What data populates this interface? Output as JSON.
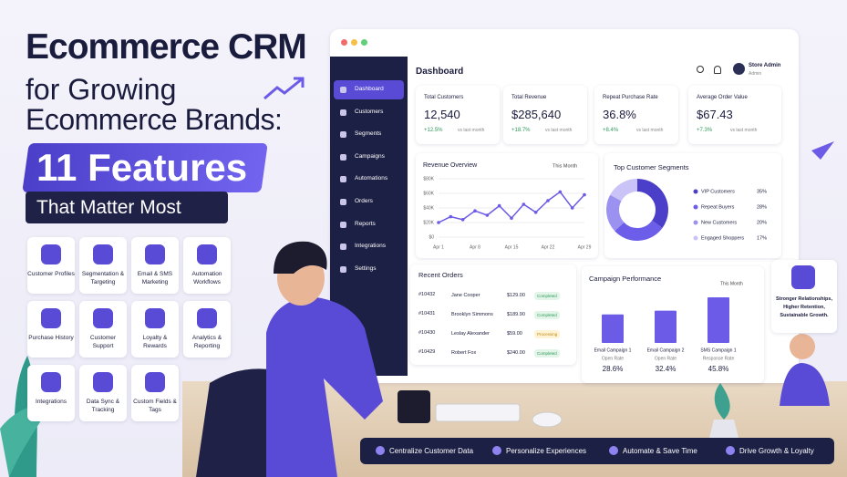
{
  "hero": {
    "line1": "Ecommerce CRM",
    "line2": "for Growing",
    "line3": "Ecommerce Brands:",
    "highlight": "11 Features",
    "subtitle": "That Matter Most"
  },
  "features": [
    "Customer Profiles",
    "Segmentation & Targeting",
    "Email & SMS Marketing",
    "Automation Workflows",
    "Purchase History",
    "Customer Support",
    "Loyalty & Rewards",
    "Analytics & Reporting",
    "Integrations",
    "Data Sync & Tracking",
    "Custom Fields & Tags"
  ],
  "dashboard": {
    "title": "Dashboard",
    "nav": [
      "Dashboard",
      "Customers",
      "Segments",
      "Campaigns",
      "Automations",
      "Orders",
      "Reports",
      "Integrations",
      "Settings"
    ],
    "user": {
      "name": "Store Admin",
      "role": "Admin"
    },
    "kpis": [
      {
        "label": "Total Customers",
        "value": "12,540",
        "change": "+12.5%",
        "period": "vs last month"
      },
      {
        "label": "Total Revenue",
        "value": "$285,640",
        "change": "+18.7%",
        "period": "vs last month"
      },
      {
        "label": "Repeat Purchase Rate",
        "value": "36.8%",
        "change": "+8.4%",
        "period": "vs last month"
      },
      {
        "label": "Average Order Value",
        "value": "$67.43",
        "change": "+7.3%",
        "period": "vs last month"
      }
    ],
    "revenue": {
      "title": "Revenue Overview",
      "range": "This Month",
      "ylim": [
        0,
        80000
      ],
      "yticks": [
        {
          "value": 0,
          "label": "$0"
        },
        {
          "value": 20000,
          "label": "$20K"
        },
        {
          "value": 40000,
          "label": "$40K"
        },
        {
          "value": 60000,
          "label": "$60K"
        },
        {
          "value": 80000,
          "label": "$80K"
        }
      ],
      "xlabels": [
        "Apr 1",
        "Apr 8",
        "Apr 15",
        "Apr 22",
        "Apr 29"
      ],
      "values": [
        20000,
        28000,
        24000,
        36000,
        30000,
        43000,
        26000,
        45000,
        34000,
        50000,
        62000,
        40000,
        58000
      ],
      "color": "#6b5be6"
    },
    "segments": {
      "title": "Top Customer Segments",
      "items": [
        {
          "name": "VIP Customers",
          "value": 35,
          "label": "35%",
          "color": "#4b3fc9"
        },
        {
          "name": "Repeat Buyers",
          "value": 28,
          "label": "28%",
          "color": "#6c5ee8"
        },
        {
          "name": "New Customers",
          "value": 20,
          "label": "20%",
          "color": "#9b91f0"
        },
        {
          "name": "Engaged Shoppers",
          "value": 17,
          "label": "17%",
          "color": "#c9c3f7"
        }
      ]
    },
    "orders": {
      "title": "Recent Orders",
      "rows": [
        {
          "id": "#10432",
          "name": "Jane Cooper",
          "amount": "$129.00",
          "status": "Completed"
        },
        {
          "id": "#10431",
          "name": "Brooklyn Simmons",
          "amount": "$189.90",
          "status": "Completed"
        },
        {
          "id": "#10430",
          "name": "Leslay Alexander",
          "amount": "$59.00",
          "status": "Processing"
        },
        {
          "id": "#10429",
          "name": "Robert Fox",
          "amount": "$240.00",
          "status": "Completed"
        }
      ]
    },
    "campaigns": {
      "title": "Campaign Performance",
      "range": "This Month",
      "items": [
        {
          "name": "Email Campaign 1",
          "metric": "Open Rate",
          "value": 28.6,
          "label": "28.6%"
        },
        {
          "name": "Email Campaign 2",
          "metric": "Open Rate",
          "value": 32.4,
          "label": "32.4%"
        },
        {
          "name": "SMS Campaign 1",
          "metric": "Response Rate",
          "value": 45.8,
          "label": "45.8%"
        }
      ]
    }
  },
  "side_note": "Stronger Relationships, Higher Retention, Sustainable Growth.",
  "benefits": [
    "Centralize Customer Data",
    "Personalize Experiences",
    "Automate & Save Time",
    "Drive Growth & Loyalty"
  ]
}
